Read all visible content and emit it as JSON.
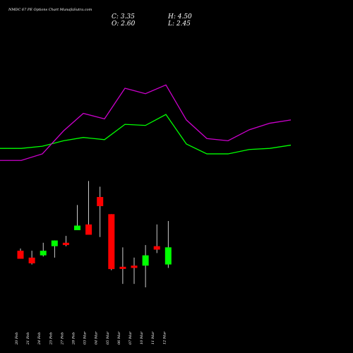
{
  "title": "NMDC 67 PE Options  Chart MunafaSutra.com",
  "ohlc": {
    "close_text": "C: 3.35",
    "high_text": "H: 4.50",
    "open_text": "O: 2.60",
    "low_text": "L: 2.45"
  },
  "colors": {
    "background": "#000000",
    "up": "#00ff00",
    "down": "#ff0000",
    "green_line": "#00ff00",
    "magenta_line": "#cc00cc",
    "wick": "#ffffff"
  },
  "chart_data": {
    "type": "candlestick",
    "categories": [
      "20 Feb",
      "21 Feb",
      "24 Feb",
      "25 Feb",
      "27 Feb",
      "28 Feb",
      "03 Mar",
      "04 Mar",
      "05 Mar",
      "06 Mar",
      "07 Mar",
      "10 Mar",
      "11 Mar",
      "12 Mar"
    ],
    "candles": [
      {
        "date": "20 Feb",
        "open": 3.2,
        "high": 3.3,
        "low": 2.85,
        "close": 2.85
      },
      {
        "date": "21 Feb",
        "open": 2.9,
        "high": 3.2,
        "low": 2.6,
        "close": 2.65
      },
      {
        "date": "24 Feb",
        "open": 3.0,
        "high": 3.55,
        "low": 2.95,
        "close": 3.2
      },
      {
        "date": "25 Feb",
        "open": 3.4,
        "high": 3.65,
        "low": 2.9,
        "close": 3.65
      },
      {
        "date": "27 Feb",
        "open": 3.55,
        "high": 3.85,
        "low": 3.4,
        "close": 3.45
      },
      {
        "date": "28 Feb",
        "open": 4.1,
        "high": 5.2,
        "low": 4.1,
        "close": 4.3
      },
      {
        "date": "03 Mar",
        "open": 4.35,
        "high": 6.25,
        "low": 3.9,
        "close": 3.9
      },
      {
        "date": "04 Mar",
        "open": 5.55,
        "high": 6.0,
        "low": 3.8,
        "close": 5.15
      },
      {
        "date": "05 Mar",
        "open": 4.8,
        "high": 4.8,
        "low": 2.35,
        "close": 2.4
      },
      {
        "date": "06 Mar",
        "open": 2.5,
        "high": 3.35,
        "low": 1.75,
        "close": 2.45
      },
      {
        "date": "07 Mar",
        "open": 2.55,
        "high": 2.9,
        "low": 1.75,
        "close": 2.45
      },
      {
        "date": "10 Mar",
        "open": 2.55,
        "high": 3.45,
        "low": 1.6,
        "close": 3.0
      },
      {
        "date": "11 Mar",
        "open": 3.4,
        "high": 4.35,
        "low": 3.1,
        "close": 3.25
      },
      {
        "date": "12 Mar",
        "open": 2.6,
        "high": 4.5,
        "low": 2.45,
        "close": 3.35
      }
    ],
    "indicator_lines": [
      {
        "color": "green",
        "values": [
          0.84,
          0.84,
          0.82,
          0.77,
          0.74,
          0.76,
          0.62,
          0.63,
          0.53,
          0.8,
          0.89,
          0.89,
          0.85,
          0.84,
          0.81
        ]
      },
      {
        "color": "magenta",
        "values": [
          0.95,
          0.95,
          0.89,
          0.68,
          0.52,
          0.57,
          0.29,
          0.34,
          0.26,
          0.58,
          0.75,
          0.77,
          0.67,
          0.61,
          0.58
        ]
      }
    ]
  }
}
